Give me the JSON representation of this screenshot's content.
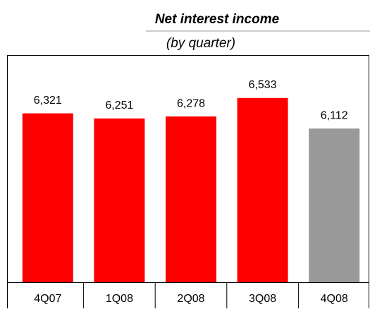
{
  "chart_data": {
    "type": "bar",
    "title": "Net interest income",
    "subtitle": "(by quarter)",
    "categories": [
      "4Q07",
      "1Q08",
      "2Q08",
      "3Q08",
      "4Q08"
    ],
    "values": [
      6321,
      6251,
      6278,
      6533,
      6112
    ],
    "value_labels": [
      "6,321",
      "6,251",
      "6,278",
      "6,533",
      "6,112"
    ],
    "colors": [
      "#ff0000",
      "#ff0000",
      "#ff0000",
      "#ff0000",
      "#999999"
    ],
    "ylim": [
      4000,
      7200
    ]
  }
}
